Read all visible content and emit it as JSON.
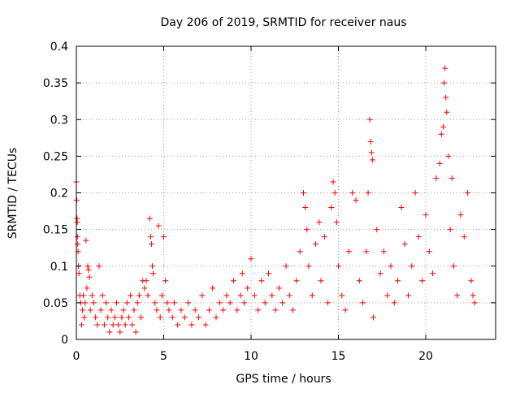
{
  "chart_data": {
    "type": "scatter",
    "title": "Day 206 of 2019, SRMTID for receiver naus",
    "xlabel": "GPS time / hours",
    "ylabel": "SRMTID / TECUs",
    "xlim": [
      0,
      24
    ],
    "ylim": [
      0,
      0.4
    ],
    "xticks": [
      0,
      5,
      10,
      15,
      20
    ],
    "xtick_labels": [
      "0",
      "5",
      "10",
      "15",
      "20"
    ],
    "yticks": [
      0,
      0.05,
      0.1,
      0.15,
      0.2,
      0.25,
      0.3,
      0.35,
      0.4
    ],
    "ytick_labels": [
      "0",
      "0.05",
      "0.1",
      "0.15",
      "0.2",
      "0.25",
      "0.3",
      "0.35",
      "0.4"
    ],
    "grid": true,
    "marker": "+",
    "series": [
      {
        "name": "SRMTID",
        "color": "#ff0000",
        "points": [
          [
            0.0,
            0.215
          ],
          [
            0.02,
            0.19
          ],
          [
            0.04,
            0.165
          ],
          [
            0.05,
            0.16
          ],
          [
            0.06,
            0.14
          ],
          [
            0.08,
            0.13
          ],
          [
            0.1,
            0.12
          ],
          [
            0.12,
            0.1
          ],
          [
            0.15,
            0.09
          ],
          [
            0.2,
            0.06
          ],
          [
            0.25,
            0.05
          ],
          [
            0.3,
            0.02
          ],
          [
            0.35,
            0.04
          ],
          [
            0.4,
            0.06
          ],
          [
            0.45,
            0.03
          ],
          [
            0.5,
            0.05
          ],
          [
            0.55,
            0.135
          ],
          [
            0.6,
            0.07
          ],
          [
            0.65,
            0.1
          ],
          [
            0.7,
            0.095
          ],
          [
            0.75,
            0.085
          ],
          [
            0.8,
            0.04
          ],
          [
            0.9,
            0.06
          ],
          [
            1.0,
            0.05
          ],
          [
            1.1,
            0.03
          ],
          [
            1.2,
            0.02
          ],
          [
            1.3,
            0.1
          ],
          [
            1.4,
            0.04
          ],
          [
            1.5,
            0.06
          ],
          [
            1.6,
            0.02
          ],
          [
            1.7,
            0.05
          ],
          [
            1.8,
            0.03
          ],
          [
            1.9,
            0.01
          ],
          [
            2.0,
            0.04
          ],
          [
            2.1,
            0.02
          ],
          [
            2.2,
            0.03
          ],
          [
            2.3,
            0.05
          ],
          [
            2.4,
            0.02
          ],
          [
            2.5,
            0.01
          ],
          [
            2.6,
            0.03
          ],
          [
            2.7,
            0.04
          ],
          [
            2.8,
            0.02
          ],
          [
            2.9,
            0.05
          ],
          [
            3.0,
            0.03
          ],
          [
            3.1,
            0.06
          ],
          [
            3.2,
            0.02
          ],
          [
            3.3,
            0.04
          ],
          [
            3.4,
            0.01
          ],
          [
            3.5,
            0.05
          ],
          [
            3.6,
            0.06
          ],
          [
            3.7,
            0.03
          ],
          [
            3.8,
            0.08
          ],
          [
            3.9,
            0.07
          ],
          [
            4.0,
            0.08
          ],
          [
            4.1,
            0.06
          ],
          [
            4.2,
            0.165
          ],
          [
            4.25,
            0.14
          ],
          [
            4.3,
            0.13
          ],
          [
            4.35,
            0.1
          ],
          [
            4.4,
            0.09
          ],
          [
            4.5,
            0.05
          ],
          [
            4.6,
            0.04
          ],
          [
            4.7,
            0.155
          ],
          [
            4.8,
            0.03
          ],
          [
            4.9,
            0.06
          ],
          [
            5.0,
            0.14
          ],
          [
            5.1,
            0.08
          ],
          [
            5.2,
            0.05
          ],
          [
            5.3,
            0.04
          ],
          [
            5.5,
            0.03
          ],
          [
            5.6,
            0.05
          ],
          [
            5.8,
            0.02
          ],
          [
            6.0,
            0.04
          ],
          [
            6.2,
            0.03
          ],
          [
            6.4,
            0.05
          ],
          [
            6.6,
            0.02
          ],
          [
            6.8,
            0.04
          ],
          [
            7.0,
            0.03
          ],
          [
            7.2,
            0.06
          ],
          [
            7.4,
            0.02
          ],
          [
            7.6,
            0.04
          ],
          [
            7.8,
            0.07
          ],
          [
            8.0,
            0.03
          ],
          [
            8.2,
            0.05
          ],
          [
            8.4,
            0.04
          ],
          [
            8.6,
            0.06
          ],
          [
            8.8,
            0.05
          ],
          [
            9.0,
            0.08
          ],
          [
            9.2,
            0.04
          ],
          [
            9.4,
            0.06
          ],
          [
            9.5,
            0.09
          ],
          [
            9.6,
            0.05
          ],
          [
            9.8,
            0.07
          ],
          [
            10.0,
            0.11
          ],
          [
            10.2,
            0.06
          ],
          [
            10.4,
            0.04
          ],
          [
            10.6,
            0.08
          ],
          [
            10.8,
            0.05
          ],
          [
            11.0,
            0.09
          ],
          [
            11.2,
            0.06
          ],
          [
            11.4,
            0.04
          ],
          [
            11.6,
            0.07
          ],
          [
            11.8,
            0.05
          ],
          [
            12.0,
            0.1
          ],
          [
            12.2,
            0.06
          ],
          [
            12.4,
            0.04
          ],
          [
            12.6,
            0.08
          ],
          [
            12.8,
            0.12
          ],
          [
            13.0,
            0.2
          ],
          [
            13.1,
            0.18
          ],
          [
            13.2,
            0.15
          ],
          [
            13.3,
            0.1
          ],
          [
            13.5,
            0.06
          ],
          [
            13.7,
            0.13
          ],
          [
            13.9,
            0.16
          ],
          [
            14.0,
            0.08
          ],
          [
            14.2,
            0.14
          ],
          [
            14.4,
            0.05
          ],
          [
            14.6,
            0.18
          ],
          [
            14.7,
            0.215
          ],
          [
            14.8,
            0.2
          ],
          [
            14.9,
            0.16
          ],
          [
            15.0,
            0.1
          ],
          [
            15.2,
            0.06
          ],
          [
            15.4,
            0.04
          ],
          [
            15.6,
            0.12
          ],
          [
            15.8,
            0.2
          ],
          [
            16.0,
            0.19
          ],
          [
            16.2,
            0.08
          ],
          [
            16.4,
            0.05
          ],
          [
            16.6,
            0.12
          ],
          [
            16.7,
            0.2
          ],
          [
            16.8,
            0.3
          ],
          [
            16.85,
            0.27
          ],
          [
            16.9,
            0.255
          ],
          [
            16.95,
            0.245
          ],
          [
            17.0,
            0.03
          ],
          [
            17.2,
            0.15
          ],
          [
            17.4,
            0.09
          ],
          [
            17.6,
            0.12
          ],
          [
            17.8,
            0.06
          ],
          [
            18.0,
            0.1
          ],
          [
            18.2,
            0.05
          ],
          [
            18.4,
            0.08
          ],
          [
            18.6,
            0.18
          ],
          [
            18.8,
            0.13
          ],
          [
            19.0,
            0.06
          ],
          [
            19.2,
            0.1
          ],
          [
            19.4,
            0.2
          ],
          [
            19.6,
            0.14
          ],
          [
            19.8,
            0.08
          ],
          [
            20.0,
            0.17
          ],
          [
            20.2,
            0.12
          ],
          [
            20.4,
            0.09
          ],
          [
            20.6,
            0.22
          ],
          [
            20.8,
            0.24
          ],
          [
            20.9,
            0.28
          ],
          [
            21.0,
            0.29
          ],
          [
            21.05,
            0.35
          ],
          [
            21.1,
            0.37
          ],
          [
            21.15,
            0.33
          ],
          [
            21.2,
            0.31
          ],
          [
            21.3,
            0.25
          ],
          [
            21.4,
            0.15
          ],
          [
            21.5,
            0.22
          ],
          [
            21.6,
            0.1
          ],
          [
            21.8,
            0.06
          ],
          [
            22.0,
            0.17
          ],
          [
            22.2,
            0.14
          ],
          [
            22.4,
            0.2
          ],
          [
            22.6,
            0.08
          ],
          [
            22.7,
            0.06
          ],
          [
            22.8,
            0.05
          ]
        ]
      }
    ]
  }
}
